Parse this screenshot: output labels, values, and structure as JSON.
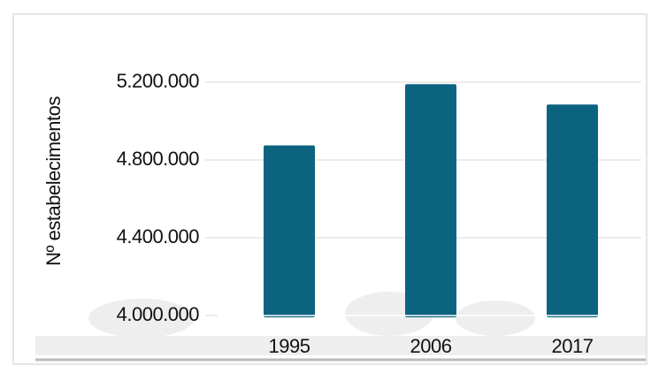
{
  "chart_data": {
    "type": "bar",
    "y_label": "Nº estabelecimentos",
    "categories": [
      "1995",
      "2006",
      "2017"
    ],
    "values": [
      4875000,
      5190000,
      5085000
    ],
    "color": "#0b6380",
    "ylim": [
      4000000,
      5200000
    ],
    "yticks": [
      {
        "value": 4000000,
        "label": "4.000.000"
      },
      {
        "value": 4400000,
        "label": "4.400.000"
      },
      {
        "value": 4800000,
        "label": "4.800.000"
      },
      {
        "value": 5200000,
        "label": "5.200.000"
      }
    ],
    "grid": true
  }
}
